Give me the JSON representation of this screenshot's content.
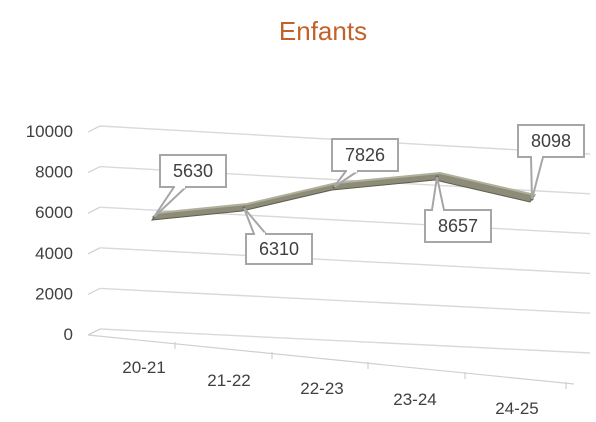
{
  "chart_data": {
    "type": "line",
    "title": "Enfants",
    "categories": [
      "20-21",
      "21-22",
      "22-23",
      "23-24",
      "24-25"
    ],
    "values": [
      5630,
      6310,
      7826,
      8657,
      8098
    ],
    "yticks": [
      "0",
      "2000",
      "4000",
      "6000",
      "8000",
      "10000"
    ],
    "ylim": [
      0,
      10000
    ],
    "grid": true,
    "style": "3d-line",
    "legend": "none"
  },
  "colors": {
    "title": "#c0622a",
    "series_face": "#8c8c78",
    "series_top": "#b0b09c",
    "series_edge": "#5e5e4e"
  }
}
